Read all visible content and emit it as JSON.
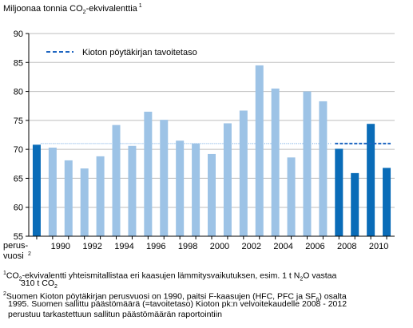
{
  "chart_data": {
    "type": "bar",
    "ylabel": "Miljoonaa tonnia CO",
    "ylabel_sub": "2",
    "ylabel_tail": "-ekvivalenttia",
    "ylabel_note": "1",
    "ylim": [
      55,
      90
    ],
    "yticks": [
      55,
      60,
      65,
      70,
      75,
      80,
      85,
      90
    ],
    "grid": true,
    "categories": [
      "perus-vuosi",
      "1990",
      "1991",
      "1992",
      "1993",
      "1994",
      "1995",
      "1996",
      "1997",
      "1998",
      "1999",
      "2000",
      "2001",
      "2002",
      "2003",
      "2004",
      "2005",
      "2006",
      "2007",
      "2008",
      "2009",
      "2010",
      "2011"
    ],
    "values": [
      70.8,
      70.3,
      68.1,
      66.7,
      68.8,
      74.2,
      70.6,
      76.5,
      75.1,
      71.5,
      71.0,
      69.2,
      74.5,
      76.7,
      84.5,
      80.5,
      68.6,
      80.0,
      78.3,
      70.1,
      65.9,
      74.4,
      66.8
    ],
    "highlight_from": "2008",
    "colors": {
      "light": "#9dc3e6",
      "dark": "#0a6cb8",
      "target": "#1f66c1",
      "dotted": "#5a9be0"
    },
    "target": {
      "value": 71.0,
      "from": "2008",
      "to": "2011",
      "legend": "Kioton pöytäkirjan tavoitetaso"
    },
    "dotted_reference": 71.0,
    "legend_position": "top-left",
    "x_tick_labels": {
      "perus-vuosi": [
        "perus-",
        "vuosi"
      ],
      "base_note": "2",
      "1990": "1990",
      "1992": "1992",
      "1994": "1994",
      "1996": "1996",
      "1998": "1998",
      "2000": "2000",
      "2002": "2002",
      "2004": "2004",
      "2006": "2006",
      "2008": "2008",
      "2010": "2010"
    }
  },
  "footnotes": {
    "note1_num": "1",
    "note1_line1_a": "CO",
    "note1_line1_sub": "2",
    "note1_line1_b": "-ekvivalentti yhteismitallistaa eri kaasujen lämmitysvaikutuksen, esim. 1 t N",
    "note1_line1_sub2": "2",
    "note1_line1_c": "O vastaa",
    "note1_line2_a": "310 t CO",
    "note1_line2_sub": "2",
    "note2_num": "2",
    "note2_line1_a": "Suomen Kioton pöytäkirjan perusvuosi on 1990, paitsi F-kaasujen (HFC, PFC ja SF",
    "note2_line1_sub": "6",
    "note2_line1_b": ") osalta",
    "note2_line2": "1995. Suomen sallittu päästömäärä (=tavoitetaso) Kioton pk:n velvoitekaudelle 2008 - 2012",
    "note2_line3": "perustuu tarkastettuun sallitun päästömäärän raportointiin"
  }
}
